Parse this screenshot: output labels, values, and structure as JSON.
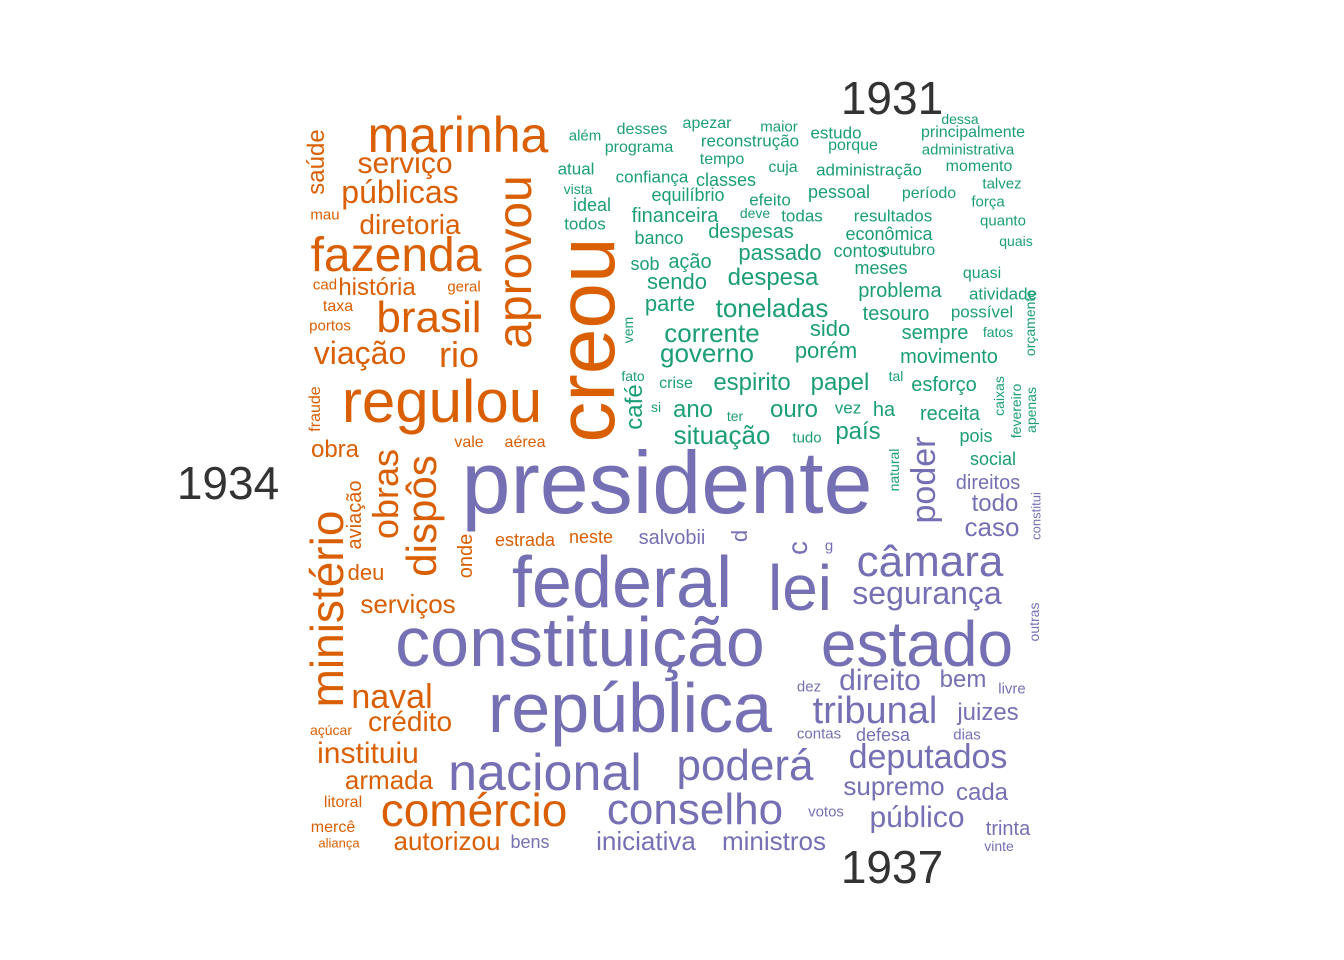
{
  "chart_data": {
    "type": "wordcloud",
    "groups": [
      {
        "name": "1931",
        "color": "#1b9e77"
      },
      {
        "name": "1934",
        "color": "#d95f02"
      },
      {
        "name": "1937",
        "color": "#7570b3"
      }
    ],
    "label_color": "#333333",
    "words": [
      {
        "w": "presidente",
        "g": 2,
        "s": 88
      },
      {
        "w": "federal",
        "g": 2,
        "s": 72
      },
      {
        "w": "constituição",
        "g": 2,
        "s": 70
      },
      {
        "w": "república",
        "g": 2,
        "s": 70
      },
      {
        "w": "estado",
        "g": 2,
        "s": 64
      },
      {
        "w": "lei",
        "g": 2,
        "s": 64
      },
      {
        "w": "nacional",
        "g": 2,
        "s": 52
      },
      {
        "w": "conselho",
        "g": 2,
        "s": 44
      },
      {
        "w": "poderá",
        "g": 2,
        "s": 44
      },
      {
        "w": "câmara",
        "g": 2,
        "s": 44
      },
      {
        "w": "deputados",
        "g": 2,
        "s": 34
      },
      {
        "w": "tribunal",
        "g": 2,
        "s": 38
      },
      {
        "w": "segurança",
        "g": 2,
        "s": 32
      },
      {
        "w": "poder",
        "g": 2,
        "s": 34
      },
      {
        "w": "direito",
        "g": 2,
        "s": 30
      },
      {
        "w": "público",
        "g": 2,
        "s": 30
      },
      {
        "w": "iniciativa",
        "g": 2,
        "s": 26
      },
      {
        "w": "ministros",
        "g": 2,
        "s": 26
      },
      {
        "w": "supremo",
        "g": 2,
        "s": 26
      },
      {
        "w": "caso",
        "g": 2,
        "s": 26
      },
      {
        "w": "juizes",
        "g": 2,
        "s": 24
      },
      {
        "w": "bem",
        "g": 2,
        "s": 24
      },
      {
        "w": "cada",
        "g": 2,
        "s": 24
      },
      {
        "w": "todo",
        "g": 2,
        "s": 24
      },
      {
        "w": "trinta",
        "g": 2,
        "s": 20
      },
      {
        "w": "salvobii",
        "g": 2,
        "s": 20
      },
      {
        "w": "c",
        "g": 2,
        "s": 28
      },
      {
        "w": "d",
        "g": 2,
        "s": 22
      },
      {
        "w": "direitos",
        "g": 2,
        "s": 20
      },
      {
        "w": "defesa",
        "g": 2,
        "s": 18
      },
      {
        "w": "bens",
        "g": 2,
        "s": 18
      },
      {
        "w": "contas",
        "g": 2,
        "s": 15
      },
      {
        "w": "votos",
        "g": 2,
        "s": 15
      },
      {
        "w": "dez",
        "g": 2,
        "s": 15
      },
      {
        "w": "livre",
        "g": 2,
        "s": 15
      },
      {
        "w": "dias",
        "g": 2,
        "s": 15
      },
      {
        "w": "vinte",
        "g": 2,
        "s": 14
      },
      {
        "w": "g",
        "g": 2,
        "s": 15
      },
      {
        "w": "outras",
        "g": 2,
        "s": 14
      },
      {
        "w": "constitui",
        "g": 2,
        "s": 13
      },
      {
        "w": "creou",
        "g": 1,
        "s": 82
      },
      {
        "w": "regulou",
        "g": 1,
        "s": 60
      },
      {
        "w": "marinha",
        "g": 1,
        "s": 50
      },
      {
        "w": "aprovou",
        "g": 1,
        "s": 48
      },
      {
        "w": "ministério",
        "g": 1,
        "s": 46
      },
      {
        "w": "fazenda",
        "g": 1,
        "s": 48
      },
      {
        "w": "brasil",
        "g": 1,
        "s": 44
      },
      {
        "w": "comércio",
        "g": 1,
        "s": 46
      },
      {
        "w": "dispôs",
        "g": 1,
        "s": 42
      },
      {
        "w": "obras",
        "g": 1,
        "s": 36
      },
      {
        "w": "rio",
        "g": 1,
        "s": 36
      },
      {
        "w": "naval",
        "g": 1,
        "s": 34
      },
      {
        "w": "públicas",
        "g": 1,
        "s": 32
      },
      {
        "w": "viação",
        "g": 1,
        "s": 32
      },
      {
        "w": "instituiu",
        "g": 1,
        "s": 30
      },
      {
        "w": "serviço",
        "g": 1,
        "s": 30
      },
      {
        "w": "diretoria",
        "g": 1,
        "s": 28
      },
      {
        "w": "crédito",
        "g": 1,
        "s": 28
      },
      {
        "w": "autorizou",
        "g": 1,
        "s": 26
      },
      {
        "w": "armada",
        "g": 1,
        "s": 26
      },
      {
        "w": "serviços",
        "g": 1,
        "s": 26
      },
      {
        "w": "história",
        "g": 1,
        "s": 24
      },
      {
        "w": "saúde",
        "g": 1,
        "s": 24
      },
      {
        "w": "obra",
        "g": 1,
        "s": 24
      },
      {
        "w": "deu",
        "g": 1,
        "s": 22
      },
      {
        "w": "aviação",
        "g": 1,
        "s": 20
      },
      {
        "w": "onde",
        "g": 1,
        "s": 20
      },
      {
        "w": "estrada",
        "g": 1,
        "s": 18
      },
      {
        "w": "neste",
        "g": 1,
        "s": 18
      },
      {
        "w": "fraude",
        "g": 1,
        "s": 16
      },
      {
        "w": "vale",
        "g": 1,
        "s": 16
      },
      {
        "w": "aérea",
        "g": 1,
        "s": 16
      },
      {
        "w": "litoral",
        "g": 1,
        "s": 16
      },
      {
        "w": "mercê",
        "g": 1,
        "s": 16
      },
      {
        "w": "geral",
        "g": 1,
        "s": 15
      },
      {
        "w": "taxa",
        "g": 1,
        "s": 16
      },
      {
        "w": "portos",
        "g": 1,
        "s": 15
      },
      {
        "w": "cad",
        "g": 1,
        "s": 15
      },
      {
        "w": "mau",
        "g": 1,
        "s": 15
      },
      {
        "w": "açúcar",
        "g": 1,
        "s": 14
      },
      {
        "w": "aliança",
        "g": 1,
        "s": 13
      },
      {
        "w": "governo",
        "g": 0,
        "s": 26
      },
      {
        "w": "situação",
        "g": 0,
        "s": 26
      },
      {
        "w": "corrente",
        "g": 0,
        "s": 26
      },
      {
        "w": "toneladas",
        "g": 0,
        "s": 26
      },
      {
        "w": "espirito",
        "g": 0,
        "s": 24
      },
      {
        "w": "papel",
        "g": 0,
        "s": 24
      },
      {
        "w": "ano",
        "g": 0,
        "s": 24
      },
      {
        "w": "ouro",
        "g": 0,
        "s": 24
      },
      {
        "w": "país",
        "g": 0,
        "s": 24
      },
      {
        "w": "despesa",
        "g": 0,
        "s": 24
      },
      {
        "w": "café",
        "g": 0,
        "s": 24
      },
      {
        "w": "parte",
        "g": 0,
        "s": 22
      },
      {
        "w": "sendo",
        "g": 0,
        "s": 22
      },
      {
        "w": "porém",
        "g": 0,
        "s": 22
      },
      {
        "w": "passado",
        "g": 0,
        "s": 22
      },
      {
        "w": "sido",
        "g": 0,
        "s": 22
      },
      {
        "w": "despesas",
        "g": 0,
        "s": 20
      },
      {
        "w": "receita",
        "g": 0,
        "s": 20
      },
      {
        "w": "movimento",
        "g": 0,
        "s": 20
      },
      {
        "w": "financeira",
        "g": 0,
        "s": 20
      },
      {
        "w": "problema",
        "g": 0,
        "s": 20
      },
      {
        "w": "tesouro",
        "g": 0,
        "s": 20
      },
      {
        "w": "sempre",
        "g": 0,
        "s": 20
      },
      {
        "w": "esforço",
        "g": 0,
        "s": 20
      },
      {
        "w": "ha",
        "g": 0,
        "s": 20
      },
      {
        "w": "ação",
        "g": 0,
        "s": 20
      },
      {
        "w": "sob",
        "g": 0,
        "s": 18
      },
      {
        "w": "banco",
        "g": 0,
        "s": 18
      },
      {
        "w": "equilíbrio",
        "g": 0,
        "s": 18
      },
      {
        "w": "classes",
        "g": 0,
        "s": 18
      },
      {
        "w": "confiança",
        "g": 0,
        "s": 17
      },
      {
        "w": "ideal",
        "g": 0,
        "s": 18
      },
      {
        "w": "todos",
        "g": 0,
        "s": 17
      },
      {
        "w": "atual",
        "g": 0,
        "s": 17
      },
      {
        "w": "econômica",
        "g": 0,
        "s": 18
      },
      {
        "w": "contos",
        "g": 0,
        "s": 18
      },
      {
        "w": "meses",
        "g": 0,
        "s": 18
      },
      {
        "w": "pessoal",
        "g": 0,
        "s": 18
      },
      {
        "w": "resultados",
        "g": 0,
        "s": 17
      },
      {
        "w": "social",
        "g": 0,
        "s": 18
      },
      {
        "w": "pois",
        "g": 0,
        "s": 18
      },
      {
        "w": "vez",
        "g": 0,
        "s": 17
      },
      {
        "w": "crise",
        "g": 0,
        "s": 16
      },
      {
        "w": "tudo",
        "g": 0,
        "s": 15
      },
      {
        "w": "efeito",
        "g": 0,
        "s": 17
      },
      {
        "w": "todas",
        "g": 0,
        "s": 17
      },
      {
        "w": "outubro",
        "g": 0,
        "s": 16
      },
      {
        "w": "período",
        "g": 0,
        "s": 16
      },
      {
        "w": "atividade",
        "g": 0,
        "s": 17
      },
      {
        "w": "possível",
        "g": 0,
        "s": 17
      },
      {
        "w": "quasi",
        "g": 0,
        "s": 16
      },
      {
        "w": "cuja",
        "g": 0,
        "s": 16
      },
      {
        "w": "administração",
        "g": 0,
        "s": 17
      },
      {
        "w": "estudo",
        "g": 0,
        "s": 17
      },
      {
        "w": "porque",
        "g": 0,
        "s": 16
      },
      {
        "w": "reconstrução",
        "g": 0,
        "s": 17
      },
      {
        "w": "programa",
        "g": 0,
        "s": 16
      },
      {
        "w": "desses",
        "g": 0,
        "s": 16
      },
      {
        "w": "apezar",
        "g": 0,
        "s": 16
      },
      {
        "w": "maior",
        "g": 0,
        "s": 15
      },
      {
        "w": "além",
        "g": 0,
        "s": 15
      },
      {
        "w": "tempo",
        "g": 0,
        "s": 16
      },
      {
        "w": "vista",
        "g": 0,
        "s": 14
      },
      {
        "w": "deve",
        "g": 0,
        "s": 14
      },
      {
        "w": "principalmente",
        "g": 0,
        "s": 16
      },
      {
        "w": "administrativa",
        "g": 0,
        "s": 15
      },
      {
        "w": "dessa",
        "g": 0,
        "s": 14
      },
      {
        "w": "momento",
        "g": 0,
        "s": 16
      },
      {
        "w": "talvez",
        "g": 0,
        "s": 15
      },
      {
        "w": "força",
        "g": 0,
        "s": 15
      },
      {
        "w": "quanto",
        "g": 0,
        "s": 15
      },
      {
        "w": "quais",
        "g": 0,
        "s": 14
      },
      {
        "w": "fatos",
        "g": 0,
        "s": 14
      },
      {
        "w": "tal",
        "g": 0,
        "s": 14
      },
      {
        "w": "fato",
        "g": 0,
        "s": 14
      },
      {
        "w": "si",
        "g": 0,
        "s": 14
      },
      {
        "w": "ter",
        "g": 0,
        "s": 14
      },
      {
        "w": "vem",
        "g": 0,
        "s": 14
      },
      {
        "w": "natural",
        "g": 0,
        "s": 14
      },
      {
        "w": "caixas",
        "g": 0,
        "s": 14
      },
      {
        "w": "fevereiro",
        "g": 0,
        "s": 14
      },
      {
        "w": "apenas",
        "g": 0,
        "s": 14
      },
      {
        "w": "orçamento",
        "g": 0,
        "s": 14
      }
    ]
  }
}
